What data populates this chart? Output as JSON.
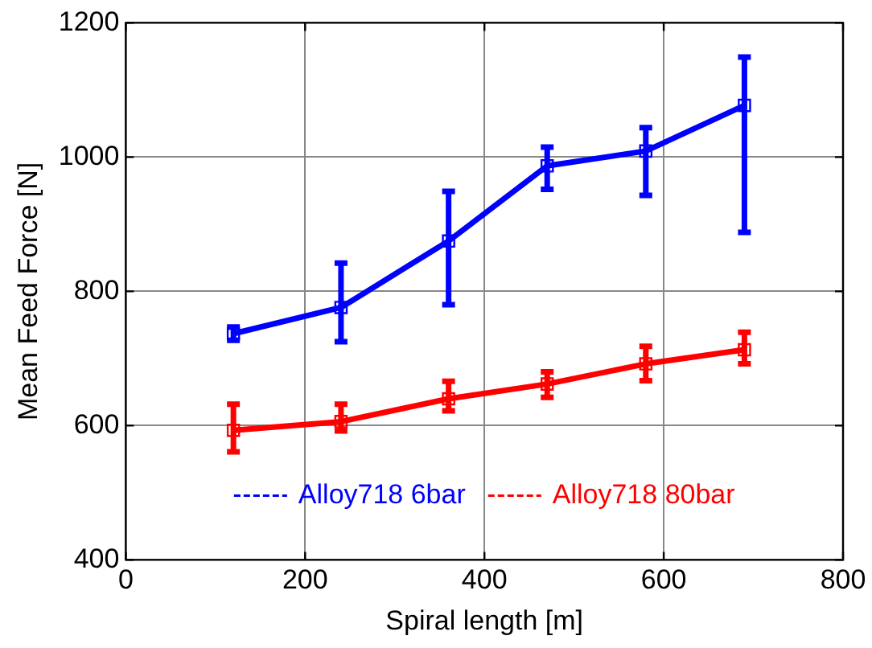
{
  "chart_data": {
    "type": "line",
    "xlabel": "Spiral length [m]",
    "ylabel": "Mean Feed Force [N]",
    "x": [
      120,
      240,
      360,
      470,
      580,
      690
    ],
    "series": [
      {
        "name": "Alloy718 6bar",
        "color": "#0000ff",
        "values": [
          737,
          776,
          875,
          987,
          1009,
          1077
        ],
        "errors": [
          [
            727,
            747
          ],
          [
            725,
            842
          ],
          [
            780,
            949
          ],
          [
            952,
            1015
          ],
          [
            943,
            1044
          ],
          [
            888,
            1149
          ]
        ]
      },
      {
        "name": "Alloy718 80bar",
        "color": "#ff0000",
        "values": [
          593,
          606,
          640,
          662,
          692,
          713
        ],
        "errors": [
          [
            561,
            632
          ],
          [
            592,
            632
          ],
          [
            622,
            666
          ],
          [
            642,
            680
          ],
          [
            667,
            718
          ],
          [
            692,
            739
          ]
        ]
      }
    ],
    "xlim": [
      0,
      800
    ],
    "xticks": [
      0,
      200,
      400,
      600,
      800
    ],
    "ylim": [
      400,
      1200
    ],
    "yticks": [
      400,
      600,
      800,
      1000,
      1200
    ],
    "grid": true,
    "legend": "bottom",
    "marker": "square",
    "line_style": "solid"
  }
}
